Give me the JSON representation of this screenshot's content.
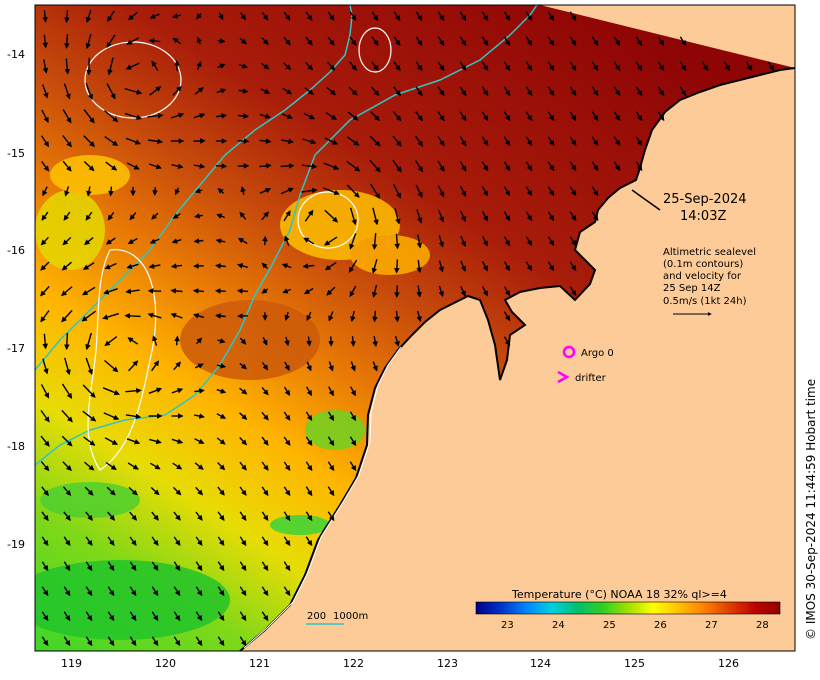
{
  "map": {
    "lat_ticks": [
      "-14",
      "-15",
      "-16",
      "-17",
      "-18",
      "-19"
    ],
    "lon_ticks": [
      "119",
      "120",
      "121",
      "122",
      "123",
      "124",
      "125",
      "126"
    ],
    "land_color": "#fdcb97",
    "coastline_color": "#000000",
    "bathymetry_color": "#2fc6c4",
    "sealevel_contour_color": "#ffffff",
    "velocity_arrow_color": "#000000"
  },
  "annotations": {
    "date": "25-Sep-2024",
    "time": "14:03Z",
    "altimetry_lines": [
      "Altimetric sealevel",
      "(0.1m contours)",
      "and velocity for",
      "25 Sep 14Z",
      "0.5m/s (1kt 24h)"
    ]
  },
  "markers": {
    "argo": {
      "label": "Argo 0",
      "color": "#ff00ff",
      "icon": "circle-marker"
    },
    "drifter": {
      "label": "drifter",
      "color": "#ff00ff",
      "icon": "chevron-marker"
    }
  },
  "bathymetry_legend": {
    "label_200": "200",
    "label_1000": "1000m"
  },
  "colorbar": {
    "title": "Temperature (°C) NOAA 18 32% ql>=4",
    "ticks": [
      "23",
      "24",
      "25",
      "26",
      "27",
      "28"
    ],
    "stops": [
      "#00008b",
      "#0033cc",
      "#0088ff",
      "#00d0e0",
      "#00c070",
      "#30d020",
      "#a0e000",
      "#ffff00",
      "#ffc000",
      "#ff8000",
      "#e04000",
      "#c00000",
      "#900000"
    ]
  },
  "credit": "© IMOS 30-Sep-2024 11:44:59 Hobart time"
}
